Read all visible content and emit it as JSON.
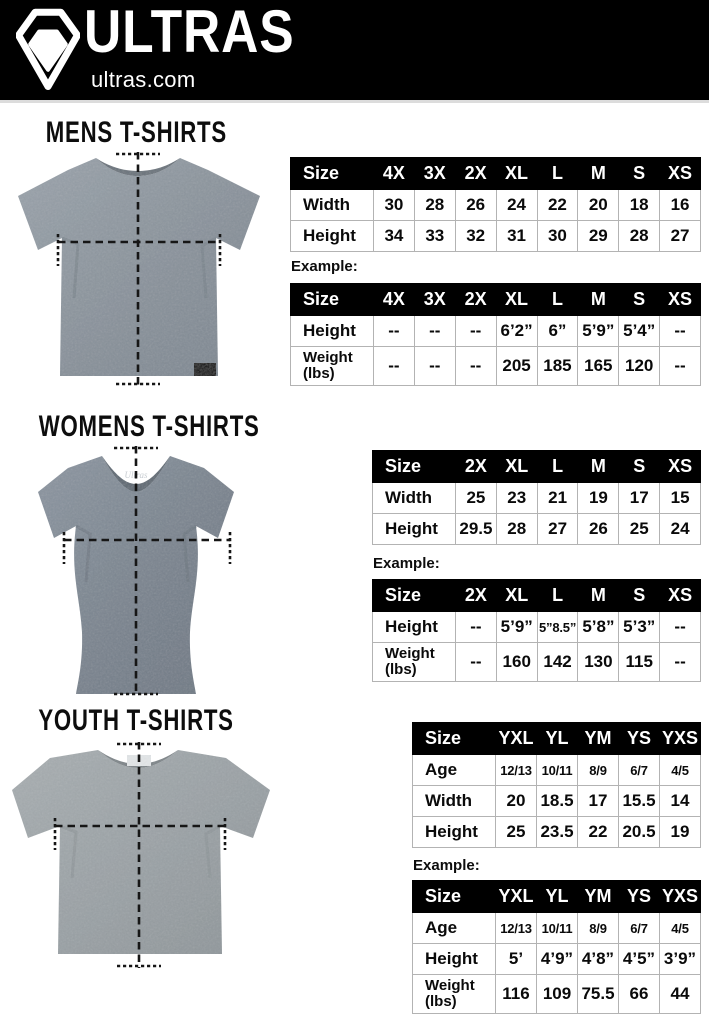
{
  "header": {
    "brand": "ULTRAS",
    "site": "ultras.com",
    "logo_icon": "pentagon-logo-icon"
  },
  "colors": {
    "header_bg": "#000000",
    "table_header_bg": "#000000",
    "table_header_text": "#ffffff",
    "table_border": "#b3b3b3",
    "body_text": "#0d0d0d",
    "mens_shirt": "#8a929a",
    "womens_shirt": "#79838d",
    "youth_shirt": "#9aa1a5"
  },
  "sections": [
    {
      "title": "MENS T-SHIRTS",
      "example_label": "Example:",
      "size_table": {
        "columns": [
          "Size",
          "4X",
          "3X",
          "2X",
          "XL",
          "L",
          "M",
          "S",
          "XS"
        ],
        "rows": [
          {
            "label": "Width",
            "values": [
              "30",
              "28",
              "26",
              "24",
              "22",
              "20",
              "18",
              "16"
            ]
          },
          {
            "label": "Height",
            "values": [
              "34",
              "33",
              "32",
              "31",
              "30",
              "29",
              "28",
              "27"
            ]
          }
        ]
      },
      "example_table": {
        "columns": [
          "Size",
          "4X",
          "3X",
          "2X",
          "XL",
          "L",
          "M",
          "S",
          "XS"
        ],
        "rows": [
          {
            "label": "Height",
            "values": [
              "--",
              "--",
              "--",
              "6’2”",
              "6”",
              "5’9”",
              "5’4”",
              "--"
            ]
          },
          {
            "label": "Weight\n(lbs)",
            "values": [
              "--",
              "--",
              "--",
              "205",
              "185",
              "165",
              "120",
              "--"
            ]
          }
        ]
      }
    },
    {
      "title": "WOMENS T-SHIRTS",
      "example_label": "Example:",
      "collar_label": "Ultras",
      "size_table": {
        "columns": [
          "Size",
          "2X",
          "XL",
          "L",
          "M",
          "S",
          "XS"
        ],
        "rows": [
          {
            "label": "Width",
            "values": [
              "25",
              "23",
              "21",
              "19",
              "17",
              "15"
            ]
          },
          {
            "label": "Height",
            "values": [
              "29.5",
              "28",
              "27",
              "26",
              "25",
              "24"
            ]
          }
        ]
      },
      "example_table": {
        "columns": [
          "Size",
          "2X",
          "XL",
          "L",
          "M",
          "S",
          "XS"
        ],
        "rows": [
          {
            "label": "Height",
            "values": [
              "--",
              "5’9”",
              "5”8.5”",
              "5’8”",
              "5’3”",
              "--"
            ]
          },
          {
            "label": "Weight\n(lbs)",
            "values": [
              "--",
              "160",
              "142",
              "130",
              "115",
              "--"
            ]
          }
        ]
      }
    },
    {
      "title": "YOUTH T-SHIRTS",
      "example_label": "Example:",
      "size_table": {
        "columns": [
          "Size",
          "YXL",
          "YL",
          "YM",
          "YS",
          "YXS"
        ],
        "rows": [
          {
            "label": "Age",
            "small": true,
            "values": [
              "12/13",
              "10/11",
              "8/9",
              "6/7",
              "4/5"
            ]
          },
          {
            "label": "Width",
            "values": [
              "20",
              "18.5",
              "17",
              "15.5",
              "14"
            ]
          },
          {
            "label": "Height",
            "values": [
              "25",
              "23.5",
              "22",
              "20.5",
              "19"
            ]
          }
        ]
      },
      "example_table": {
        "columns": [
          "Size",
          "YXL",
          "YL",
          "YM",
          "YS",
          "YXS"
        ],
        "rows": [
          {
            "label": "Age",
            "small": true,
            "values": [
              "12/13",
              "10/11",
              "8/9",
              "6/7",
              "4/5"
            ]
          },
          {
            "label": "Height",
            "values": [
              "5’",
              "4’9”",
              "4’8”",
              "4’5”",
              "3’9”"
            ]
          },
          {
            "label": "Weight\n(lbs)",
            "values": [
              "116",
              "109",
              "75.5",
              "66",
              "44"
            ]
          }
        ]
      }
    }
  ]
}
